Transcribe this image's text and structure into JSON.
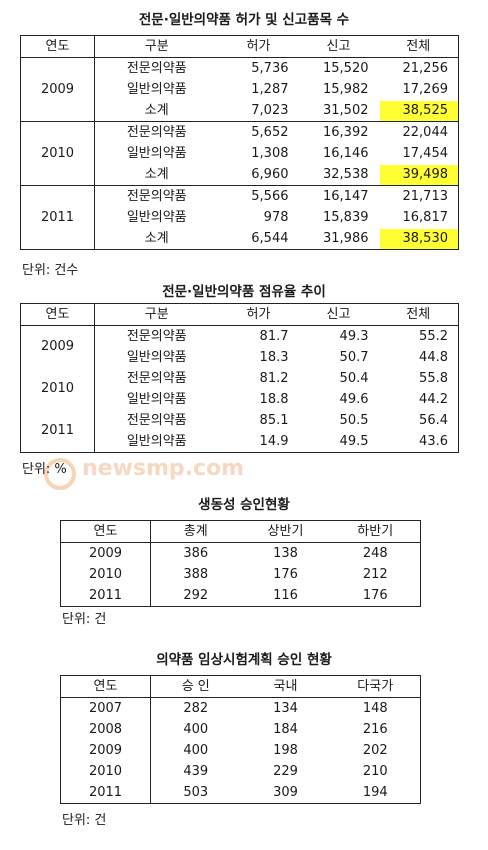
{
  "table1": {
    "title": "전문·일반의약품 허가 및 신고품목 수",
    "headers": [
      "연도",
      "구분",
      "허가",
      "신고",
      "전체"
    ],
    "groups": [
      {
        "year": "2009",
        "rows": [
          {
            "type": "전문의약품",
            "permit": "5,736",
            "report": "15,520",
            "total": "21,256"
          },
          {
            "type": "일반의약품",
            "permit": "1,287",
            "report": "15,982",
            "total": "17,269"
          },
          {
            "type": "소계",
            "permit": "7,023",
            "report": "31,502",
            "total": "38,525"
          }
        ]
      },
      {
        "year": "2010",
        "rows": [
          {
            "type": "전문의약품",
            "permit": "5,652",
            "report": "16,392",
            "total": "22,044"
          },
          {
            "type": "일반의약품",
            "permit": "1,308",
            "report": "16,146",
            "total": "17,454"
          },
          {
            "type": "소계",
            "permit": "6,960",
            "report": "32,538",
            "total": "39,498"
          }
        ]
      },
      {
        "year": "2011",
        "rows": [
          {
            "type": "전문의약품",
            "permit": "5,566",
            "report": "16,147",
            "total": "21,713"
          },
          {
            "type": "일반의약품",
            "permit": "978",
            "report": "15,839",
            "total": "16,817"
          },
          {
            "type": "소계",
            "permit": "6,544",
            "report": "31,986",
            "total": "38,530"
          }
        ]
      }
    ],
    "unit": "단위: 건수",
    "highlight_color": "#ffff33"
  },
  "table2": {
    "title": "전문·일반의약품 점유율 추이",
    "headers": [
      "연도",
      "구분",
      "허가",
      "신고",
      "전체"
    ],
    "groups": [
      {
        "year": "2009",
        "rows": [
          {
            "type": "전문의약품",
            "permit": "81.7",
            "report": "49.3",
            "total": "55.2"
          },
          {
            "type": "일반의약품",
            "permit": "18.3",
            "report": "50.7",
            "total": "44.8"
          }
        ]
      },
      {
        "year": "2010",
        "rows": [
          {
            "type": "전문의약품",
            "permit": "81.2",
            "report": "50.4",
            "total": "55.8"
          },
          {
            "type": "일반의약품",
            "permit": "18.8",
            "report": "49.6",
            "total": "44.2"
          }
        ]
      },
      {
        "year": "2011",
        "rows": [
          {
            "type": "전문의약품",
            "permit": "85.1",
            "report": "50.5",
            "total": "56.4"
          },
          {
            "type": "일반의약품",
            "permit": "14.9",
            "report": "49.5",
            "total": "43.6"
          }
        ]
      }
    ],
    "unit": "단위: %"
  },
  "watermark": {
    "text": "newsmp.com"
  },
  "table3": {
    "title": "생동성 승인현황",
    "headers": [
      "연도",
      "총계",
      "상반기",
      "하반기"
    ],
    "rows": [
      [
        "2009",
        "386",
        "138",
        "248"
      ],
      [
        "2010",
        "388",
        "176",
        "212"
      ],
      [
        "2011",
        "292",
        "116",
        "176"
      ]
    ],
    "unit": "단위: 건"
  },
  "table4": {
    "title": "의약품 임상시험계획 승인 현황",
    "headers": [
      "연도",
      "승 인",
      "국내",
      "다국가"
    ],
    "rows": [
      [
        "2007",
        "282",
        "134",
        "148"
      ],
      [
        "2008",
        "400",
        "184",
        "216"
      ],
      [
        "2009",
        "400",
        "198",
        "202"
      ],
      [
        "2010",
        "439",
        "229",
        "210"
      ],
      [
        "2011",
        "503",
        "309",
        "194"
      ]
    ],
    "unit": "단위: 건"
  }
}
